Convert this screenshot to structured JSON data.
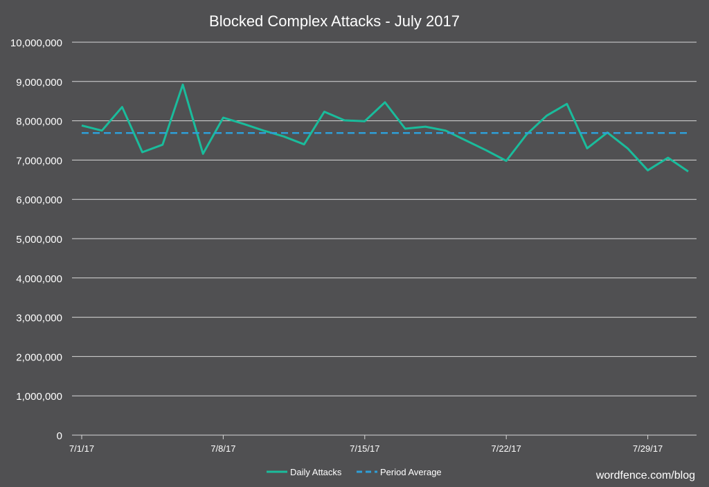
{
  "chart_data": {
    "type": "line",
    "title": "Blocked Complex Attacks - July 2017",
    "xlabel": "",
    "ylabel": "",
    "ylim": [
      0,
      10000000
    ],
    "ytick_values": [
      0,
      1000000,
      2000000,
      3000000,
      4000000,
      5000000,
      6000000,
      7000000,
      8000000,
      9000000,
      10000000
    ],
    "ytick_labels": [
      "0",
      "1,000,000",
      "2,000,000",
      "3,000,000",
      "4,000,000",
      "5,000,000",
      "6,000,000",
      "7,000,000",
      "8,000,000",
      "9,000,000",
      "10,000,000"
    ],
    "xtick_labels": [
      "7/1/17",
      "7/8/17",
      "7/15/17",
      "7/22/17",
      "7/29/17"
    ],
    "x": [
      "7/1/17",
      "7/2/17",
      "7/3/17",
      "7/4/17",
      "7/5/17",
      "7/6/17",
      "7/7/17",
      "7/8/17",
      "7/9/17",
      "7/10/17",
      "7/11/17",
      "7/12/17",
      "7/13/17",
      "7/14/17",
      "7/15/17",
      "7/16/17",
      "7/17/17",
      "7/18/17",
      "7/19/17",
      "7/20/17",
      "7/21/17",
      "7/22/17",
      "7/23/17",
      "7/24/17",
      "7/25/17",
      "7/26/17",
      "7/27/17",
      "7/28/17",
      "7/29/17",
      "7/30/17",
      "7/31/17"
    ],
    "series": [
      {
        "name": "Daily Attacks",
        "style": "solid",
        "color": "#1ABC9C",
        "values": [
          7880000,
          7750000,
          8350000,
          7200000,
          7390000,
          8920000,
          7160000,
          8080000,
          7920000,
          7750000,
          7600000,
          7400000,
          8230000,
          8010000,
          7990000,
          8470000,
          7800000,
          7850000,
          7750000,
          7500000,
          7250000,
          6980000,
          7650000,
          8130000,
          8430000,
          7300000,
          7700000,
          7300000,
          6740000,
          7060000,
          6710000
        ]
      },
      {
        "name": "Period Average",
        "style": "dashed",
        "color": "#2E9FD8",
        "values": [
          7690000,
          7690000,
          7690000,
          7690000,
          7690000,
          7690000,
          7690000,
          7690000,
          7690000,
          7690000,
          7690000,
          7690000,
          7690000,
          7690000,
          7690000,
          7690000,
          7690000,
          7690000,
          7690000,
          7690000,
          7690000,
          7690000,
          7690000,
          7690000,
          7690000,
          7690000,
          7690000,
          7690000,
          7690000,
          7690000,
          7690000
        ]
      }
    ],
    "grid": true,
    "legend_position": "bottom-center",
    "background_color": "#505052",
    "gridline_color": "#D9D9D9"
  },
  "watermark": "wordfence.com/blog"
}
